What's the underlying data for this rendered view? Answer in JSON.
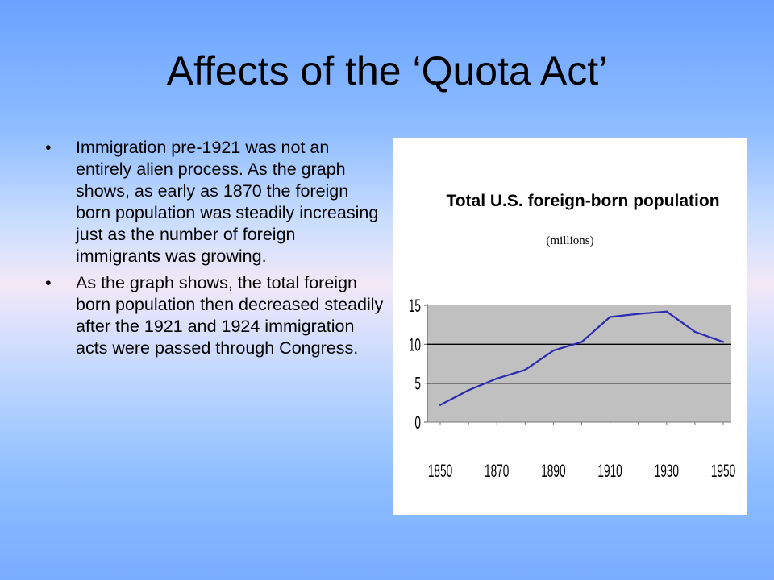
{
  "slide": {
    "title": "Affects of the ‘Quota Act’",
    "bullets": [
      "Immigration pre-1921 was not an entirely alien process.  As the graph shows, as early as 1870 the foreign born population was steadily increasing just as the number of foreign immigrants was growing.",
      "As the graph shows, the total foreign born population then decreased steadily after the 1921 and 1924 immigration acts were passed through Congress."
    ],
    "bullet_symbol": "•"
  },
  "chart_data": {
    "type": "line",
    "title": "Total U.S. foreign-born population",
    "subtitle": "(millions)",
    "x": [
      1850,
      1860,
      1870,
      1880,
      1890,
      1900,
      1910,
      1920,
      1930,
      1940,
      1950
    ],
    "series": [
      {
        "values": [
          2.2,
          4.1,
          5.6,
          6.7,
          9.2,
          10.3,
          13.5,
          13.9,
          14.2,
          11.6,
          10.3
        ]
      }
    ],
    "x_ticks": [
      "1850",
      "1870",
      "1890",
      "1910",
      "1930",
      "1950"
    ],
    "y_ticks": [
      "0",
      "5",
      "10",
      "15"
    ],
    "xlim": [
      1850,
      1950
    ],
    "ylim": [
      0,
      15
    ],
    "grid": true,
    "colors": {
      "line": "#2b2bb0",
      "plot_background": "#c0c0c0",
      "panel": "#ffffff"
    }
  }
}
